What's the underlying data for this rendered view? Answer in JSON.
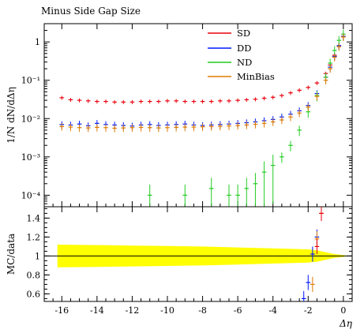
{
  "chart_data": [
    {
      "type": "scatter",
      "title": "Minus Side Gap Size",
      "ylabel": "1/N dN/dΔη",
      "xlabel": "Δη",
      "yscale": "log",
      "xlim": [
        -17,
        0.5
      ],
      "ylim": [
        5e-05,
        3
      ],
      "x_ticks": [
        "-16",
        "-14",
        "-12",
        "-10",
        "-8",
        "-6",
        "-4",
        "-2",
        "0"
      ],
      "y_ticks": [
        "10⁻⁴",
        "10⁻³",
        "10⁻²",
        "10⁻¹",
        "1"
      ],
      "legend": {
        "position": "top-right"
      },
      "series": [
        {
          "name": "SD",
          "color": "#e8000b",
          "points": [
            [
              -16.0,
              0.035
            ],
            [
              -15.5,
              0.031
            ],
            [
              -15.0,
              0.03
            ],
            [
              -14.5,
              0.029
            ],
            [
              -14.0,
              0.028
            ],
            [
              -13.5,
              0.028
            ],
            [
              -13.0,
              0.027
            ],
            [
              -12.5,
              0.027
            ],
            [
              -12.0,
              0.027
            ],
            [
              -11.5,
              0.028
            ],
            [
              -11.0,
              0.028
            ],
            [
              -10.5,
              0.028
            ],
            [
              -10.0,
              0.029
            ],
            [
              -9.5,
              0.029
            ],
            [
              -9.0,
              0.028
            ],
            [
              -8.5,
              0.028
            ],
            [
              -8.0,
              0.028
            ],
            [
              -7.5,
              0.028
            ],
            [
              -7.0,
              0.029
            ],
            [
              -6.5,
              0.029
            ],
            [
              -6.0,
              0.03
            ],
            [
              -5.5,
              0.031
            ],
            [
              -5.0,
              0.032
            ],
            [
              -4.5,
              0.034
            ],
            [
              -4.0,
              0.036
            ],
            [
              -3.5,
              0.04
            ],
            [
              -3.0,
              0.047
            ],
            [
              -2.5,
              0.055
            ],
            [
              -2.0,
              0.065
            ],
            [
              -1.5,
              0.085
            ],
            [
              -1.0,
              0.15
            ],
            [
              -0.75,
              0.25
            ],
            [
              -0.5,
              0.45
            ],
            [
              -0.25,
              0.8
            ],
            [
              0.0,
              1.4
            ]
          ]
        },
        {
          "name": "DD",
          "color": "#0018ff",
          "points": [
            [
              -16.0,
              0.007
            ],
            [
              -15.5,
              0.0068
            ],
            [
              -15.0,
              0.0072
            ],
            [
              -14.5,
              0.0065
            ],
            [
              -14.0,
              0.0075
            ],
            [
              -13.5,
              0.007
            ],
            [
              -13.0,
              0.0068
            ],
            [
              -12.5,
              0.0066
            ],
            [
              -12.0,
              0.0064
            ],
            [
              -11.5,
              0.0068
            ],
            [
              -11.0,
              0.007
            ],
            [
              -10.5,
              0.0066
            ],
            [
              -10.0,
              0.0068
            ],
            [
              -9.5,
              0.007
            ],
            [
              -9.0,
              0.0072
            ],
            [
              -8.5,
              0.0068
            ],
            [
              -8.0,
              0.0066
            ],
            [
              -7.5,
              0.0068
            ],
            [
              -7.0,
              0.007
            ],
            [
              -6.5,
              0.0072
            ],
            [
              -6.0,
              0.0075
            ],
            [
              -5.5,
              0.0078
            ],
            [
              -5.0,
              0.0082
            ],
            [
              -4.5,
              0.0088
            ],
            [
              -4.0,
              0.0095
            ],
            [
              -3.5,
              0.011
            ],
            [
              -3.0,
              0.013
            ],
            [
              -2.5,
              0.016
            ],
            [
              -2.0,
              0.022
            ],
            [
              -1.5,
              0.045
            ],
            [
              -1.0,
              0.12
            ],
            [
              -0.75,
              0.22
            ],
            [
              -0.5,
              0.42
            ],
            [
              -0.25,
              0.8
            ],
            [
              0.0,
              1.4
            ]
          ]
        },
        {
          "name": "ND",
          "color": "#22cc22",
          "points": [
            [
              -11.0,
              0.0001
            ],
            [
              -9.0,
              0.0001
            ],
            [
              -7.5,
              0.00015
            ],
            [
              -6.5,
              0.0001
            ],
            [
              -6.0,
              0.0001
            ],
            [
              -5.5,
              0.00015
            ],
            [
              -5.0,
              0.0002
            ],
            [
              -4.5,
              0.0004
            ],
            [
              -4.0,
              0.0006
            ],
            [
              -3.5,
              0.001
            ],
            [
              -3.0,
              0.002
            ],
            [
              -2.5,
              0.005
            ],
            [
              -2.0,
              0.015
            ],
            [
              -1.5,
              0.04
            ],
            [
              -1.0,
              0.12
            ],
            [
              -0.75,
              0.28
            ],
            [
              -0.5,
              0.6
            ],
            [
              -0.25,
              1.1
            ],
            [
              0.0,
              1.6
            ]
          ]
        },
        {
          "name": "MinBias",
          "color": "#e07b00",
          "points": [
            [
              -16.0,
              0.0062
            ],
            [
              -15.5,
              0.006
            ],
            [
              -15.0,
              0.0058
            ],
            [
              -14.5,
              0.0057
            ],
            [
              -14.0,
              0.0059
            ],
            [
              -13.5,
              0.0058
            ],
            [
              -13.0,
              0.0056
            ],
            [
              -12.5,
              0.0057
            ],
            [
              -12.0,
              0.0058
            ],
            [
              -11.5,
              0.0059
            ],
            [
              -11.0,
              0.0058
            ],
            [
              -10.5,
              0.0057
            ],
            [
              -10.0,
              0.0058
            ],
            [
              -9.5,
              0.0059
            ],
            [
              -9.0,
              0.006
            ],
            [
              -8.5,
              0.006
            ],
            [
              -8.0,
              0.0061
            ],
            [
              -7.5,
              0.0062
            ],
            [
              -7.0,
              0.0063
            ],
            [
              -6.5,
              0.0064
            ],
            [
              -6.0,
              0.0066
            ],
            [
              -5.5,
              0.0068
            ],
            [
              -5.0,
              0.0071
            ],
            [
              -4.5,
              0.0075
            ],
            [
              -4.0,
              0.0082
            ],
            [
              -3.5,
              0.0092
            ],
            [
              -3.0,
              0.011
            ],
            [
              -2.5,
              0.014
            ],
            [
              -2.0,
              0.02
            ],
            [
              -1.5,
              0.038
            ],
            [
              -1.0,
              0.1
            ],
            [
              -0.75,
              0.2
            ],
            [
              -0.5,
              0.4
            ],
            [
              -0.25,
              0.75
            ],
            [
              0.0,
              1.35
            ]
          ]
        }
      ]
    },
    {
      "type": "scatter",
      "title": "",
      "ylabel": "MC/data",
      "xlabel": "Δη",
      "xlim": [
        -17,
        0.5
      ],
      "ylim": [
        0.52,
        1.52
      ],
      "x_ticks": [
        "-16",
        "-14",
        "-12",
        "-10",
        "-8",
        "-6",
        "-4",
        "-2",
        "0"
      ],
      "y_ticks": [
        "0.6",
        "0.8",
        "1",
        "1.2",
        "1.4"
      ],
      "band_color": "#ffff00",
      "band": [
        [
          -16.25,
          0.12
        ],
        [
          -14.0,
          0.115
        ],
        [
          -12.0,
          0.11
        ],
        [
          -10.0,
          0.105
        ],
        [
          -8.0,
          0.1
        ],
        [
          -6.0,
          0.09
        ],
        [
          -4.0,
          0.08
        ],
        [
          -3.0,
          0.075
        ],
        [
          -2.0,
          0.07
        ],
        [
          -1.5,
          0.06
        ],
        [
          -1.0,
          0.04
        ],
        [
          -0.5,
          0.02
        ],
        [
          0.0,
          0.01
        ],
        [
          0.25,
          0.0
        ]
      ],
      "series": [
        {
          "name": "DD",
          "color": "#0018ff",
          "points": [
            [
              -2.25,
              0.55
            ],
            [
              -2.0,
              0.72
            ],
            [
              -1.75,
              1.02
            ],
            [
              -1.5,
              1.2
            ]
          ]
        },
        {
          "name": "MinBias",
          "color": "#e07b00",
          "points": [
            [
              -1.75,
              0.7
            ],
            [
              -1.5,
              1.18
            ],
            [
              -1.25,
              1.45
            ]
          ]
        },
        {
          "name": "SD",
          "color": "#e8000b",
          "points": [
            [
              -1.5,
              1.1
            ],
            [
              -1.25,
              1.45
            ]
          ]
        }
      ]
    }
  ]
}
